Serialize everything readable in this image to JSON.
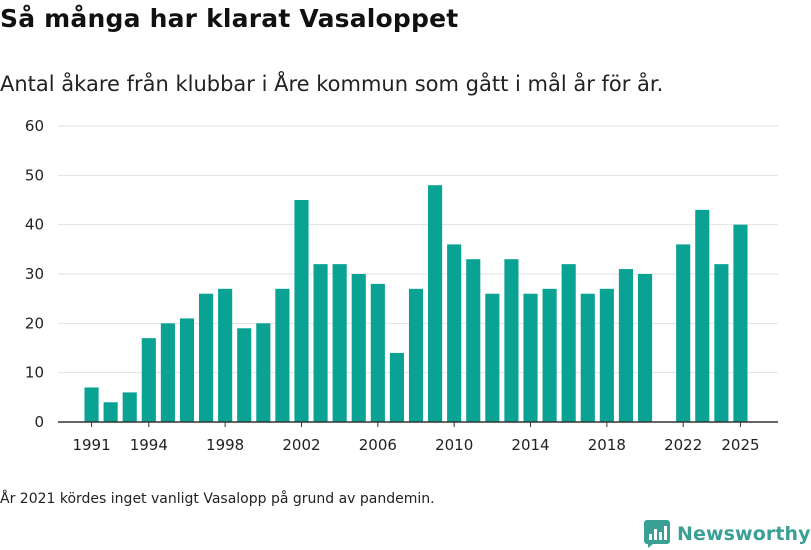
{
  "header": {
    "title": "Så många har klarat Vasaloppet",
    "subtitle": "Antal åkare från klubbar i Åre kommun som gått i mål år för år."
  },
  "footnote": "År 2021 kördes inget vanligt Vasalopp på grund av pandemin.",
  "brand": {
    "name": "Newsworthy",
    "color": "#3a9f95",
    "icon": "bar-chart-logo-icon"
  },
  "colors": {
    "bar": "#0aa393",
    "grid": "#e2e2e2",
    "axis": "#333333"
  },
  "chart_data": {
    "type": "bar",
    "x": [
      1991,
      1992,
      1993,
      1994,
      1995,
      1996,
      1997,
      1998,
      1999,
      2000,
      2001,
      2002,
      2003,
      2004,
      2005,
      2006,
      2007,
      2008,
      2009,
      2010,
      2011,
      2012,
      2013,
      2014,
      2015,
      2016,
      2017,
      2018,
      2019,
      2020,
      2022,
      2023,
      2024,
      2025
    ],
    "values": [
      7,
      4,
      6,
      17,
      20,
      21,
      26,
      27,
      19,
      20,
      27,
      45,
      32,
      32,
      30,
      28,
      14,
      27,
      48,
      36,
      33,
      26,
      33,
      26,
      27,
      32,
      26,
      27,
      31,
      30,
      36,
      43,
      32,
      40
    ],
    "xticks": [
      1991,
      1994,
      1998,
      2002,
      2006,
      2010,
      2014,
      2018,
      2022,
      2025
    ],
    "yticks": [
      0,
      10,
      20,
      30,
      40,
      50,
      60
    ],
    "ylim": [
      0,
      60
    ],
    "xlim": [
      1990.5,
      2025.5
    ],
    "grid": true
  }
}
